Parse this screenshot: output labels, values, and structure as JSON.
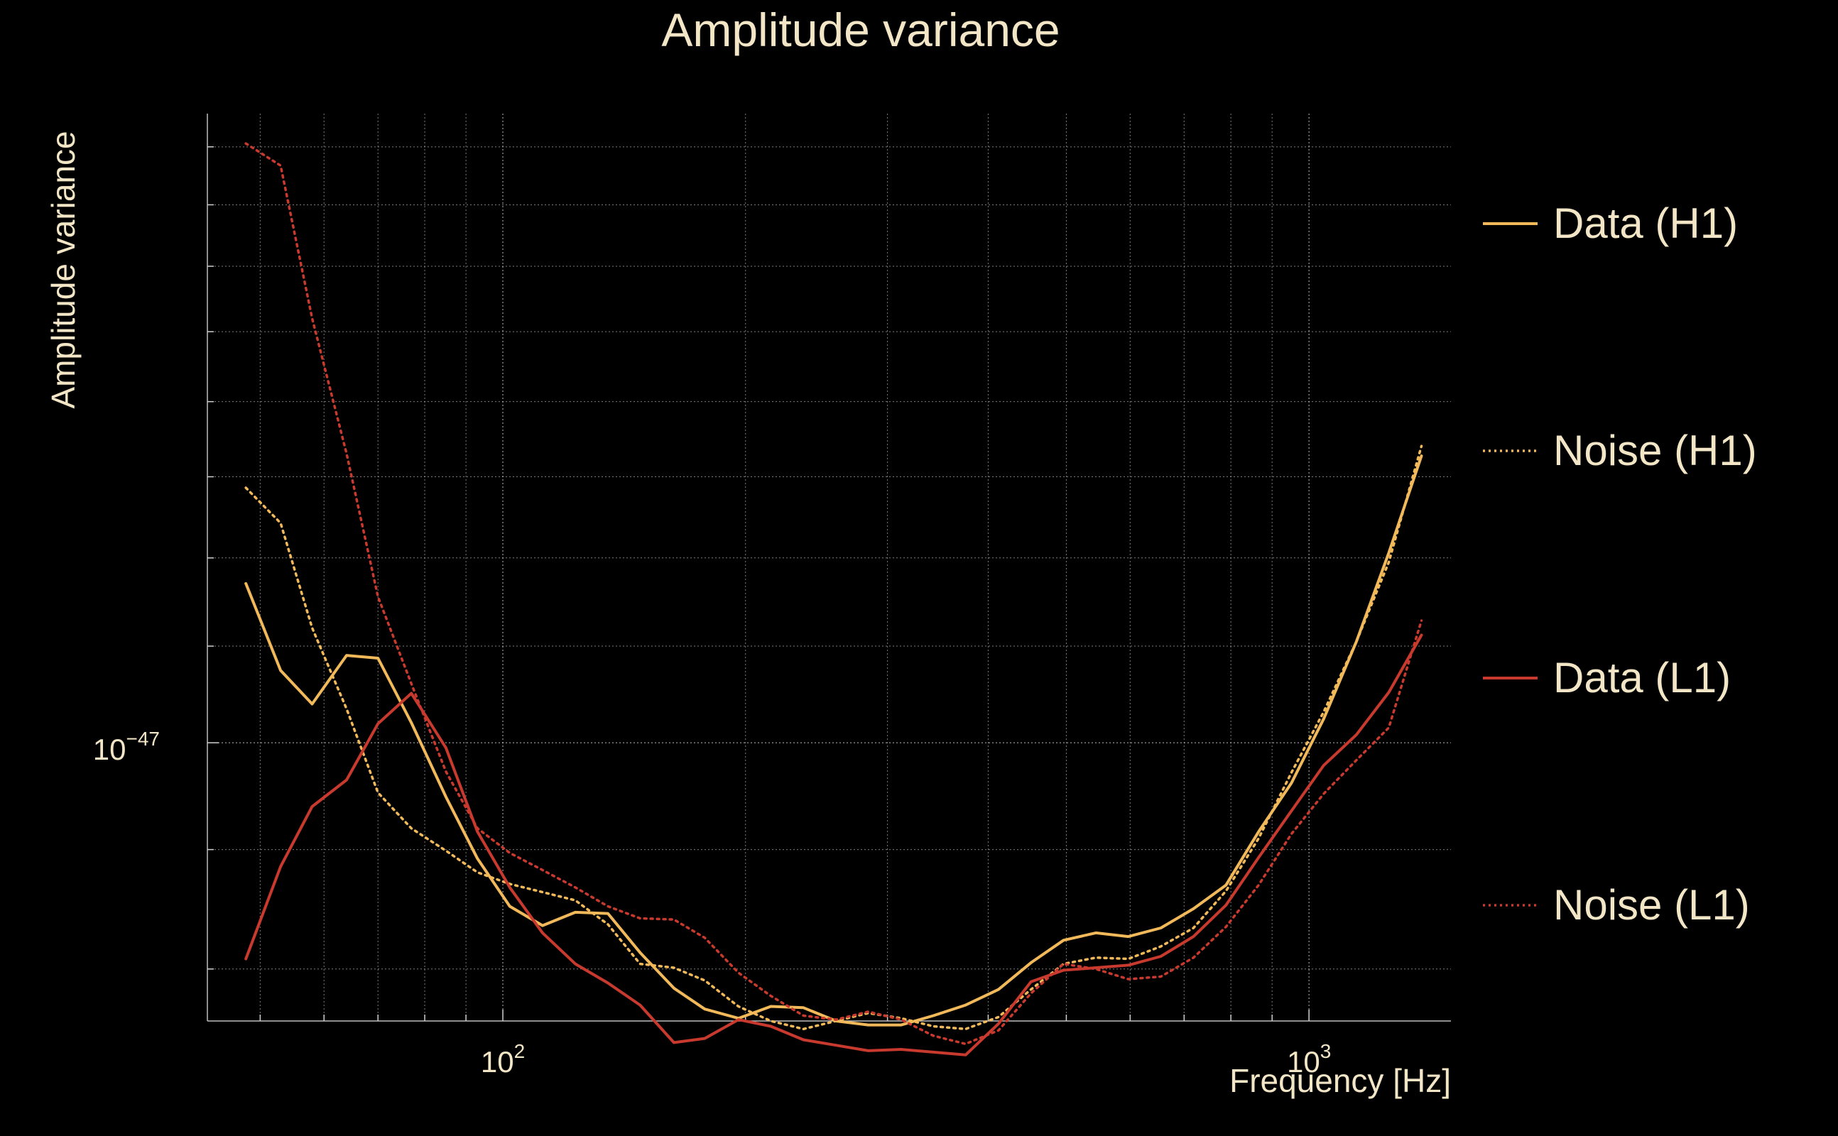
{
  "chart_data": {
    "type": "line",
    "title": "Amplitude variance",
    "xlabel": "Frequency [Hz]",
    "ylabel": "Amplitude variance",
    "xscale": "log",
    "yscale": "log",
    "xlim": [
      43,
      1500
    ],
    "ylim": [
      7.6e-48,
      1.86e-47
    ],
    "grid": true,
    "legend_position": "right",
    "x_tick_labels": [
      {
        "value": 100,
        "base": "10",
        "exp": "2"
      },
      {
        "value": 1000,
        "base": "10",
        "exp": "3"
      }
    ],
    "y_tick_labels": [
      {
        "value": 1e-47,
        "base": "10",
        "exp": "−47"
      }
    ],
    "x": [
      48,
      53,
      58,
      64,
      70,
      77,
      85,
      93,
      102,
      112,
      123,
      135,
      148,
      163,
      178,
      196,
      215,
      236,
      259,
      284,
      312,
      342,
      375,
      412,
      452,
      496,
      544,
      597,
      655,
      719,
      789,
      866,
      951,
      1043,
      1145,
      1256,
      1379
    ],
    "series": [
      {
        "name": "Data (H1)",
        "color": "#f2b95a",
        "dash": "solid",
        "values": [
          1.17e-47,
          1.074e-47,
          1.039e-47,
          1.09e-47,
          1.087e-47,
          1.02e-47,
          9.48e-48,
          8.92e-48,
          8.51e-48,
          8.35e-48,
          8.46e-48,
          8.45e-48,
          8.13e-48,
          7.85e-48,
          7.69e-48,
          7.62e-48,
          7.71e-48,
          7.7e-48,
          7.6e-48,
          7.57e-48,
          7.57e-48,
          7.64e-48,
          7.72e-48,
          7.84e-48,
          8.05e-48,
          8.23e-48,
          8.29e-48,
          8.26e-48,
          8.33e-48,
          8.49e-48,
          8.69e-48,
          9.16e-48,
          9.61e-48,
          1.024e-47,
          1.105e-47,
          1.206e-47,
          1.327e-47
        ]
      },
      {
        "name": "Noise (H1)",
        "color": "#f2b95a",
        "dash": "dotted",
        "values": [
          1.286e-47,
          1.242e-47,
          1.12e-47,
          1.034e-47,
          9.52e-48,
          9.19e-48,
          8.99e-48,
          8.8e-48,
          8.7e-48,
          8.63e-48,
          8.56e-48,
          8.36e-48,
          8.04e-48,
          8.01e-48,
          7.91e-48,
          7.71e-48,
          7.6e-48,
          7.54e-48,
          7.6e-48,
          7.66e-48,
          7.62e-48,
          7.56e-48,
          7.54e-48,
          7.63e-48,
          7.84e-48,
          8.04e-48,
          8.09e-48,
          8.08e-48,
          8.18e-48,
          8.33e-48,
          8.64e-48,
          9.1e-48,
          9.71e-48,
          1.031e-47,
          1.105e-47,
          1.195e-47,
          1.34e-47
        ]
      },
      {
        "name": "Data (L1)",
        "color": "#c8392e",
        "dash": "solid",
        "values": [
          8.08e-48,
          8.85e-48,
          9.39e-48,
          9.64e-48,
          1.019e-47,
          1.05e-47,
          9.95e-48,
          9.16e-48,
          8.67e-48,
          8.29e-48,
          8.04e-48,
          7.89e-48,
          7.72e-48,
          7.44e-48,
          7.47e-48,
          7.61e-48,
          7.56e-48,
          7.46e-48,
          7.42e-48,
          7.38e-48,
          7.39e-48,
          7.37e-48,
          7.35e-48,
          7.58e-48,
          7.9e-48,
          7.99e-48,
          8.01e-48,
          8.03e-48,
          8.1e-48,
          8.26e-48,
          8.52e-48,
          8.93e-48,
          9.35e-48,
          9.78e-48,
          1.008e-47,
          1.051e-47,
          1.112e-47
        ]
      },
      {
        "name": "Noise (L1)",
        "color": "#c8392e",
        "dash": "dotted",
        "values": [
          1.806e-47,
          1.767e-47,
          1.52e-47,
          1.33e-47,
          1.155e-47,
          1.06e-47,
          9.72e-48,
          9.19e-48,
          8.97e-48,
          8.82e-48,
          8.67e-48,
          8.51e-48,
          8.41e-48,
          8.4e-48,
          8.25e-48,
          7.97e-48,
          7.79e-48,
          7.64e-48,
          7.61e-48,
          7.67e-48,
          7.61e-48,
          7.49e-48,
          7.43e-48,
          7.53e-48,
          7.81e-48,
          8.04e-48,
          8e-48,
          7.92e-48,
          7.94e-48,
          8.09e-48,
          8.34e-48,
          8.69e-48,
          9.14e-48,
          9.51e-48,
          9.83e-48,
          1.015e-47,
          1.128e-47
        ]
      }
    ]
  }
}
